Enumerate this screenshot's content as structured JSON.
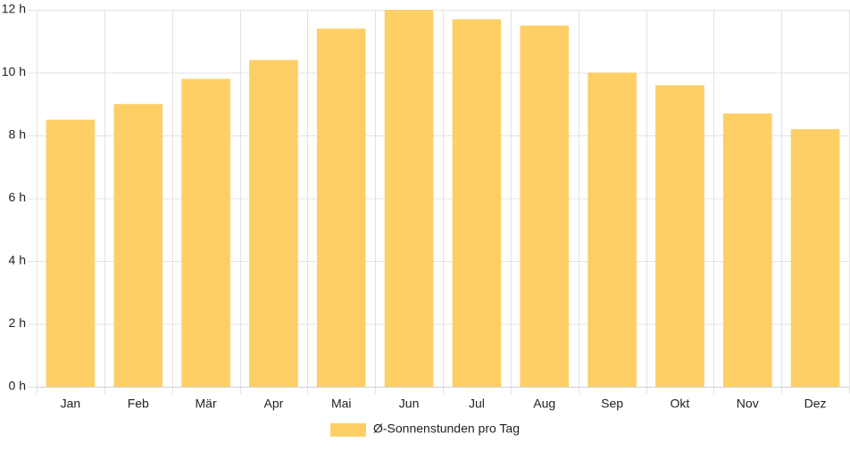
{
  "chart_data": {
    "type": "bar",
    "categories": [
      "Jan",
      "Feb",
      "Mär",
      "Apr",
      "Mai",
      "Jun",
      "Jul",
      "Aug",
      "Sep",
      "Okt",
      "Nov",
      "Dez"
    ],
    "series": [
      {
        "name": "Ø-Sonnenstunden pro Tag",
        "values": [
          8.5,
          9.0,
          9.8,
          10.4,
          11.4,
          12.0,
          11.7,
          11.5,
          10.0,
          9.6,
          8.7,
          8.2
        ]
      }
    ],
    "ylim": [
      0,
      12
    ],
    "yticks": [
      0,
      2,
      4,
      6,
      8,
      10,
      12
    ],
    "ytick_unit": "h",
    "grid": true,
    "legend_position": "bottom",
    "bar_color": "#fecf65"
  }
}
